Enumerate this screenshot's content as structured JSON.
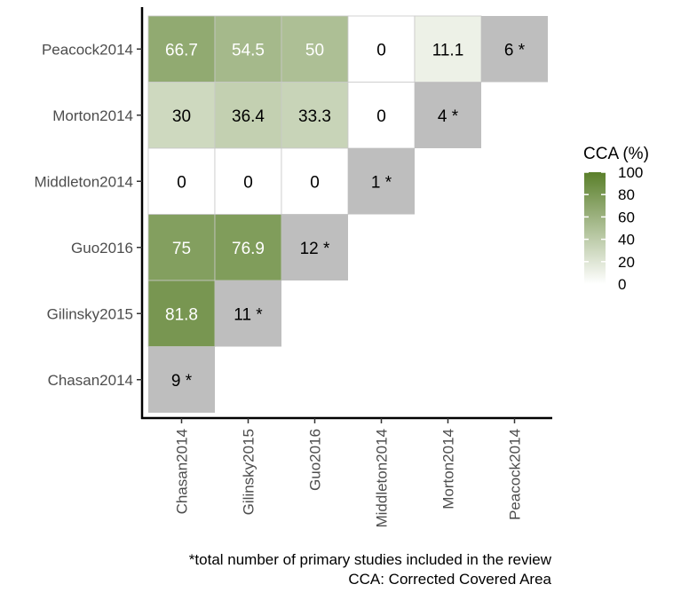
{
  "chart_data": {
    "type": "heatmap",
    "x_categories": [
      "Chasan2014",
      "Gilinsky2015",
      "Guo2016",
      "Middleton2014",
      "Morton2014",
      "Peacock2014"
    ],
    "y_categories": [
      "Peacock2014",
      "Morton2014",
      "Middleton2014",
      "Guo2016",
      "Gilinsky2015",
      "Chasan2014"
    ],
    "cells": [
      {
        "x": "Chasan2014",
        "y": "Peacock2014",
        "value": 66.7,
        "label": "66.7"
      },
      {
        "x": "Gilinsky2015",
        "y": "Peacock2014",
        "value": 54.5,
        "label": "54.5"
      },
      {
        "x": "Guo2016",
        "y": "Peacock2014",
        "value": 50,
        "label": "50"
      },
      {
        "x": "Middleton2014",
        "y": "Peacock2014",
        "value": 0,
        "label": "0"
      },
      {
        "x": "Morton2014",
        "y": "Peacock2014",
        "value": 11.1,
        "label": "11.1"
      },
      {
        "x": "Peacock2014",
        "y": "Peacock2014",
        "value": null,
        "label": "6 *"
      },
      {
        "x": "Chasan2014",
        "y": "Morton2014",
        "value": 30,
        "label": "30"
      },
      {
        "x": "Gilinsky2015",
        "y": "Morton2014",
        "value": 36.4,
        "label": "36.4"
      },
      {
        "x": "Guo2016",
        "y": "Morton2014",
        "value": 33.3,
        "label": "33.3"
      },
      {
        "x": "Middleton2014",
        "y": "Morton2014",
        "value": 0,
        "label": "0"
      },
      {
        "x": "Morton2014",
        "y": "Morton2014",
        "value": null,
        "label": "4 *"
      },
      {
        "x": "Chasan2014",
        "y": "Middleton2014",
        "value": 0,
        "label": "0"
      },
      {
        "x": "Gilinsky2015",
        "y": "Middleton2014",
        "value": 0,
        "label": "0"
      },
      {
        "x": "Guo2016",
        "y": "Middleton2014",
        "value": 0,
        "label": "0"
      },
      {
        "x": "Middleton2014",
        "y": "Middleton2014",
        "value": null,
        "label": "1 *"
      },
      {
        "x": "Chasan2014",
        "y": "Guo2016",
        "value": 75,
        "label": "75"
      },
      {
        "x": "Gilinsky2015",
        "y": "Guo2016",
        "value": 76.9,
        "label": "76.9"
      },
      {
        "x": "Guo2016",
        "y": "Guo2016",
        "value": null,
        "label": "12 *"
      },
      {
        "x": "Chasan2014",
        "y": "Gilinsky2015",
        "value": 81.8,
        "label": "81.8"
      },
      {
        "x": "Gilinsky2015",
        "y": "Gilinsky2015",
        "value": null,
        "label": "11 *"
      },
      {
        "x": "Chasan2014",
        "y": "Chasan2014",
        "value": null,
        "label": "9 *"
      }
    ],
    "legend": {
      "title": "CCA (%)",
      "ticks": [
        0,
        20,
        40,
        60,
        80,
        100
      ],
      "range": [
        0,
        100
      ],
      "placement": "right"
    },
    "colors": {
      "low": "#ffffff",
      "high": "#5a7f2a",
      "diagonal": "#bebebe",
      "text_light": "#ffffff",
      "text_dark": "#000000"
    },
    "captions": [
      "*total number of primary studies included in the review",
      "CCA: Corrected Covered Area"
    ]
  }
}
